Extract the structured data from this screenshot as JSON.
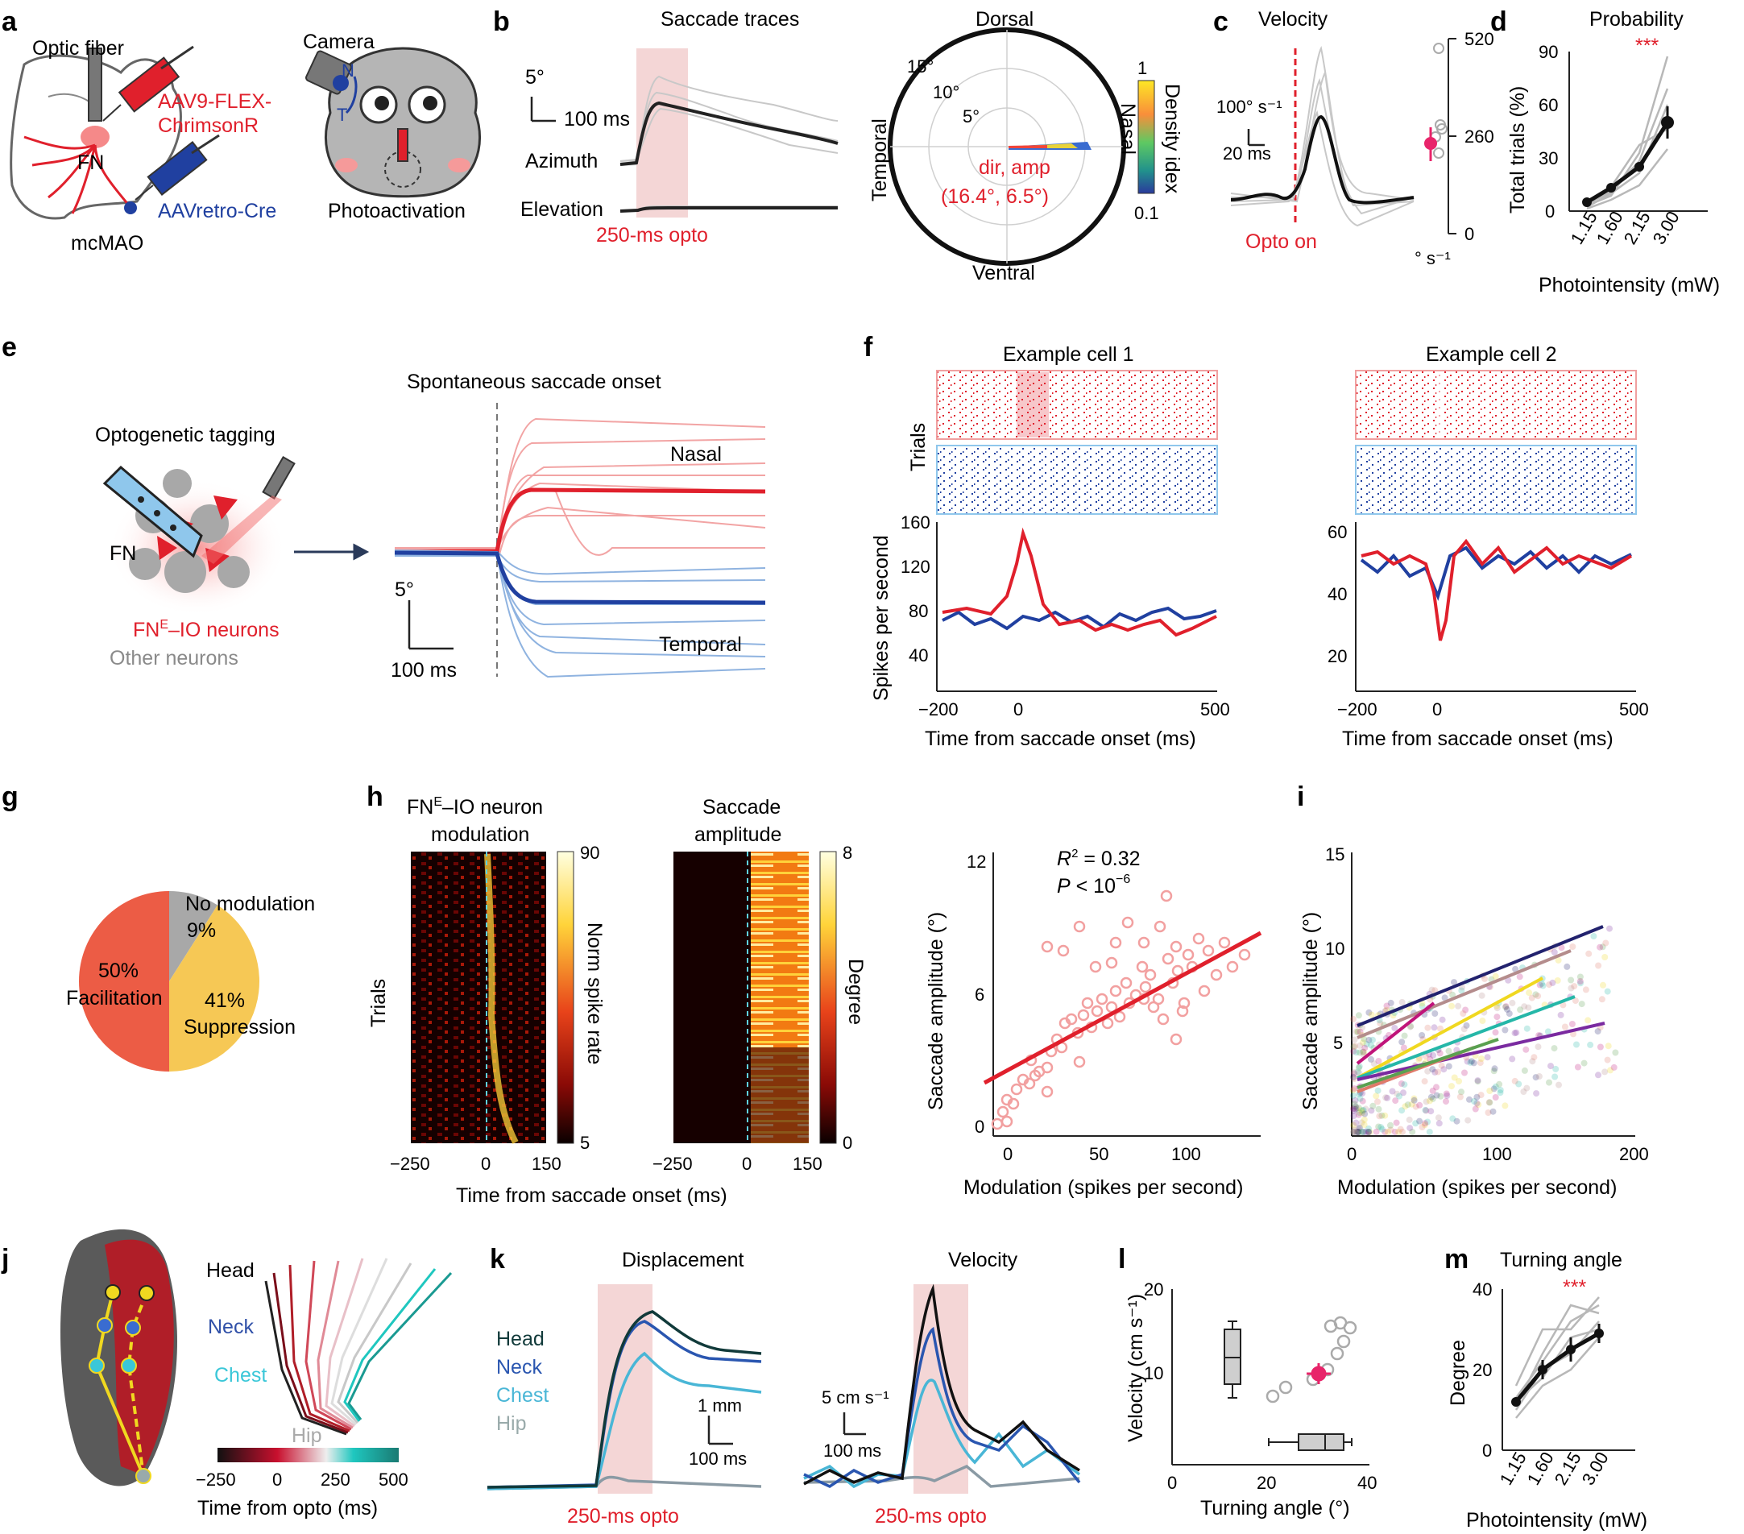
{
  "panels": {
    "a": {
      "letter": "a",
      "optic_fiber": "Optic fiber",
      "virus1_line1": "AAV9-FLEX-",
      "virus1_line2": "ChrimsonR",
      "fn": "FN",
      "virus2": "AAVretro-Cre",
      "mcmao": "mcMAO",
      "camera": "Camera",
      "n": "N",
      "t": "T",
      "photoactivation": "Photoactivation"
    },
    "b": {
      "letter": "b",
      "title": "Saccade traces",
      "scale_deg": "5°",
      "scale_ms": "100 ms",
      "azimuth": "Azimuth",
      "elevation": "Elevation",
      "opto": "250-ms opto",
      "polar_top": "Dorsal",
      "polar_bottom": "Ventral",
      "polar_left": "Temporal",
      "polar_right": "Nasal",
      "ring15": "15°",
      "ring10": "10°",
      "ring5": "5°",
      "annot1": "dir, amp",
      "annot2": "(16.4°, 6.5°)",
      "colorbar_title": "Density idex",
      "colorbar_max": "1",
      "colorbar_min": "0.1"
    },
    "c": {
      "letter": "c",
      "title": "Velocity",
      "scale_v": "100° s⁻¹",
      "scale_ms": "20 ms",
      "opto_on": "Opto on",
      "axis_ticks": [
        "520",
        "260",
        "0"
      ],
      "axis_unit": "° s⁻¹"
    },
    "d": {
      "letter": "d",
      "title": "Probability",
      "stars": "***",
      "ylabel": "Total trials (%)",
      "xlabel": "Photointensity (mW)",
      "yticks": [
        "90",
        "60",
        "30",
        "0"
      ],
      "xticks": [
        "1.15",
        "1.60",
        "2.15",
        "3.00"
      ]
    },
    "e": {
      "letter": "e",
      "title": "Spontaneous saccade onset",
      "tagging": "Optogenetic tagging",
      "fn": "FN",
      "fne_io_a": "FN",
      "fne_io_sup": "E",
      "fne_io_b": "–IO neurons",
      "other": "Other neurons",
      "nasal": "Nasal",
      "temporal": "Temporal",
      "scale_deg": "5°",
      "scale_ms": "100 ms"
    },
    "f": {
      "letter": "f",
      "cell1": "Example cell 1",
      "cell2": "Example cell 2",
      "trials": "Trials",
      "ylabel": "Spikes per second",
      "xlabel": "Time from saccade onset (ms)",
      "yticks1": [
        "160",
        "120",
        "80",
        "40"
      ],
      "yticks2": [
        "60",
        "40",
        "20"
      ],
      "xticks": [
        "−200",
        "0",
        "500"
      ]
    },
    "g": {
      "letter": "g",
      "no_mod": "No modulation",
      "no_mod_pct": "9%",
      "fac_pct": "50%",
      "fac": "Facilitation",
      "sup_pct": "41%",
      "sup": "Suppression"
    },
    "h": {
      "letter": "h",
      "title1_a": "FN",
      "title1_sup": "E",
      "title1_b": "–IO neuron",
      "title1_line2": "modulation",
      "title2_line1": "Saccade",
      "title2_line2": "amplitude",
      "trials": "Trials",
      "cb1_label": "Norm spike rate",
      "cb1_max": "90",
      "cb1_min": "5",
      "cb2_label": "Degree",
      "cb2_max": "8",
      "cb2_min": "0",
      "xticks": [
        "−250",
        "0",
        "150"
      ],
      "xlabel": "Time from saccade onset (ms)",
      "scatter_ylabel": "Saccade amplitude (°)",
      "scatter_xlabel": "Modulation (spikes per second)",
      "r2_a": "R",
      "r2_b": " = 0.32",
      "p_a": "P",
      "p_b": " < 10",
      "p_exp": "−6",
      "scatter_yticks": [
        "12",
        "6",
        "0"
      ],
      "scatter_xticks": [
        "0",
        "50",
        "100"
      ]
    },
    "i": {
      "letter": "i",
      "ylabel": "Saccade amplitude (°)",
      "xlabel": "Modulation (spikes per second)",
      "yticks": [
        "15",
        "10",
        "5"
      ],
      "xticks": [
        "0",
        "100",
        "200"
      ]
    },
    "j": {
      "letter": "j",
      "head": "Head",
      "neck": "Neck",
      "chest": "Chest",
      "hip": "Hip",
      "cb_ticks": [
        "−250",
        "0",
        "250",
        "500"
      ],
      "xlabel": "Time from opto (ms)"
    },
    "k": {
      "letter": "k",
      "title1": "Displacement",
      "title2": "Velocity",
      "legend": [
        "Head",
        "Neck",
        "Chest",
        "Hip"
      ],
      "scale_mm": "1 mm",
      "scale_ms": "100 ms",
      "scale_v": "5 cm s⁻¹",
      "scale_ms2": "100 ms",
      "opto1": "250-ms opto",
      "opto2": "250-ms opto"
    },
    "l": {
      "letter": "l",
      "ylabel": "Velocity (cm s⁻¹)",
      "xlabel": "Turning angle (°)",
      "yticks": [
        "20",
        "10"
      ],
      "xticks": [
        "0",
        "20",
        "40"
      ]
    },
    "m": {
      "letter": "m",
      "title": "Turning angle",
      "stars": "***",
      "ylabel": "Degree",
      "xlabel": "Photointensity (mW)",
      "yticks": [
        "40",
        "20",
        "0"
      ],
      "xticks": [
        "1.15",
        "1.60",
        "2.15",
        "3.00"
      ]
    }
  },
  "pie_data": {
    "type": "pie",
    "labels": [
      "Facilitation",
      "Suppression",
      "No modulation"
    ],
    "values": [
      50,
      41,
      9
    ],
    "colors": [
      "#ec5c45",
      "#f6c855",
      "#a8a8a8"
    ]
  },
  "chart_data": [
    {
      "type": "line",
      "panel": "d",
      "x": [
        1.15,
        1.6,
        2.15,
        3.0
      ],
      "series": [
        {
          "values": [
            5,
            13,
            25,
            50
          ]
        }
      ],
      "ylim": [
        0,
        90
      ]
    },
    {
      "type": "line",
      "panel": "m",
      "x": [
        1.15,
        1.6,
        2.15,
        3.0
      ],
      "series": [
        {
          "values": [
            12,
            20,
            25,
            29
          ]
        }
      ],
      "ylim": [
        0,
        40
      ]
    },
    {
      "type": "scatter",
      "panel": "h-right",
      "fit": {
        "intercept": 2.4,
        "slope": 0.045
      },
      "xlim": [
        -10,
        140
      ],
      "ylim": [
        0,
        12
      ]
    }
  ],
  "colors": {
    "red": "#e0202c",
    "blue": "#2040a0",
    "light_red": "#f0a0a0",
    "light_blue": "#8fb3e0",
    "opto_shade": "#f4d6d6"
  }
}
